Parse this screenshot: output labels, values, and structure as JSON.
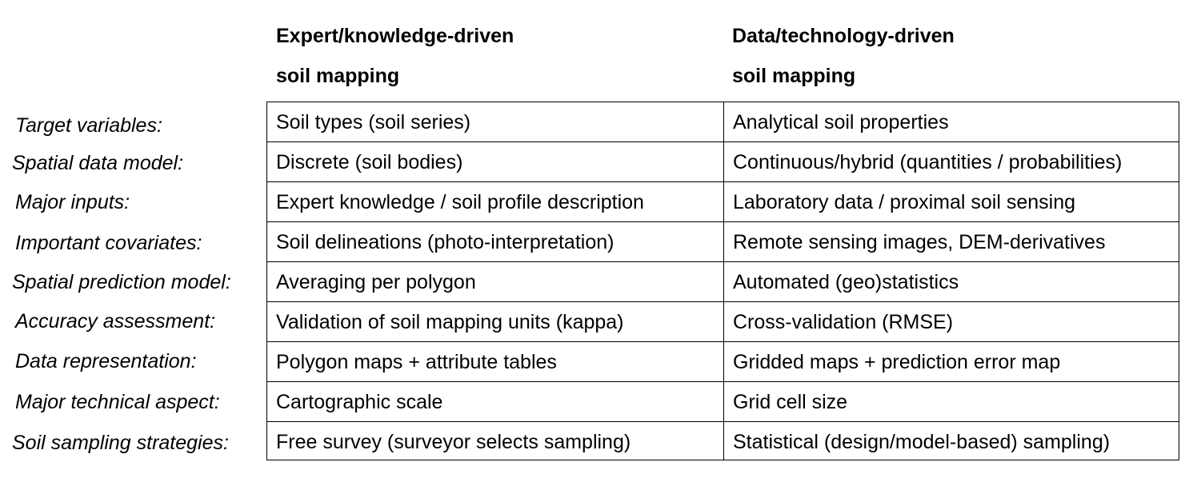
{
  "headers": {
    "left": [
      "Expert/knowledge-driven",
      "soil mapping"
    ],
    "right": [
      "Data/technology-driven",
      "soil mapping"
    ]
  },
  "rows": [
    {
      "label": "Target variables:",
      "left": "Soil types (soil series)",
      "right": "Analytical soil properties"
    },
    {
      "label": "Spatial data model:",
      "left": "Discrete (soil bodies)",
      "right": "Continuous/hybrid (quantities / probabilities)"
    },
    {
      "label": "Major inputs:",
      "left": "Expert knowledge / soil profile description",
      "right": "Laboratory data / proximal soil sensing"
    },
    {
      "label": "Important covariates:",
      "left": "Soil delineations (photo-interpretation)",
      "right": "Remote sensing images, DEM-derivatives"
    },
    {
      "label": "Spatial prediction model:",
      "left": "Averaging per polygon",
      "right": "Automated (geo)statistics"
    },
    {
      "label": "Accuracy assessment:",
      "left": "Validation of soil mapping units (kappa)",
      "right": "Cross-validation (RMSE)"
    },
    {
      "label": "Data representation:",
      "left": "Polygon maps + attribute tables",
      "right": "Gridded maps + prediction error map"
    },
    {
      "label": "Major technical aspect:",
      "left": "Cartographic scale",
      "right": "Grid cell size"
    },
    {
      "label": "Soil sampling strategies:",
      "left": "Free survey (surveyor selects sampling)",
      "right": "Statistical (design/model-based) sampling)"
    }
  ]
}
